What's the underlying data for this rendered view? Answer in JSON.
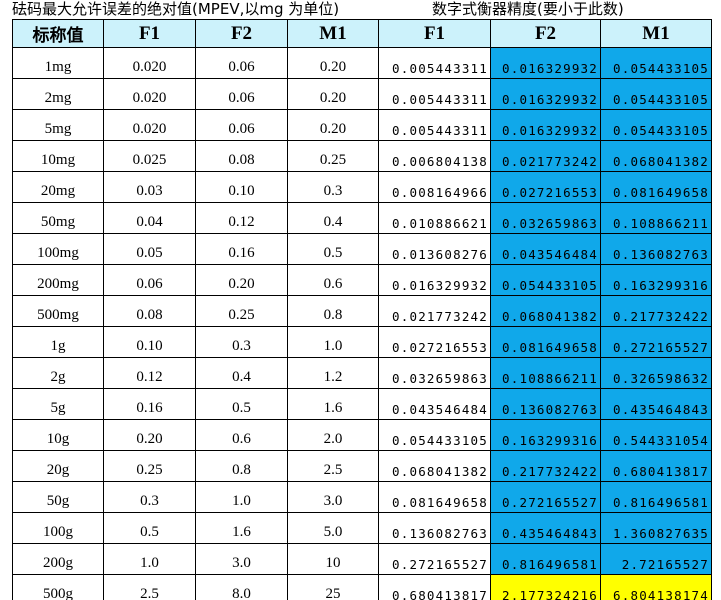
{
  "header": {
    "title_left": "砝码最大允许误差的绝对值(MPEV,以mg 为单位)",
    "title_right": "数字式衡器精度(要小于此数)"
  },
  "table": {
    "columns": [
      "标称值",
      "F1",
      "F2",
      "M1",
      "F1",
      "F2",
      "M1"
    ],
    "rows": [
      [
        "1mg",
        "0.020",
        "0.06",
        "0.20",
        "0.005443311",
        "0.016329932",
        "0.054433105"
      ],
      [
        "2mg",
        "0.020",
        "0.06",
        "0.20",
        "0.005443311",
        "0.016329932",
        "0.054433105"
      ],
      [
        "5mg",
        "0.020",
        "0.06",
        "0.20",
        "0.005443311",
        "0.016329932",
        "0.054433105"
      ],
      [
        "10mg",
        "0.025",
        "0.08",
        "0.25",
        "0.006804138",
        "0.021773242",
        "0.068041382"
      ],
      [
        "20mg",
        "0.03",
        "0.10",
        "0.3",
        "0.008164966",
        "0.027216553",
        "0.081649658"
      ],
      [
        "50mg",
        "0.04",
        "0.12",
        "0.4",
        "0.010886621",
        "0.032659863",
        "0.108866211"
      ],
      [
        "100mg",
        "0.05",
        "0.16",
        "0.5",
        "0.013608276",
        "0.043546484",
        "0.136082763"
      ],
      [
        "200mg",
        "0.06",
        "0.20",
        "0.6",
        "0.016329932",
        "0.054433105",
        "0.163299316"
      ],
      [
        "500mg",
        "0.08",
        "0.25",
        "0.8",
        "0.021773242",
        "0.068041382",
        "0.217732422"
      ],
      [
        "1g",
        "0.10",
        "0.3",
        "1.0",
        "0.027216553",
        "0.081649658",
        "0.272165527"
      ],
      [
        "2g",
        "0.12",
        "0.4",
        "1.2",
        "0.032659863",
        "0.108866211",
        "0.326598632"
      ],
      [
        "5g",
        "0.16",
        "0.5",
        "1.6",
        "0.043546484",
        "0.136082763",
        "0.435464843"
      ],
      [
        "10g",
        "0.20",
        "0.6",
        "2.0",
        "0.054433105",
        "0.163299316",
        "0.544331054"
      ],
      [
        "20g",
        "0.25",
        "0.8",
        "2.5",
        "0.068041382",
        "0.217732422",
        "0.680413817"
      ],
      [
        "50g",
        "0.3",
        "1.0",
        "3.0",
        "0.081649658",
        "0.272165527",
        "0.816496581"
      ],
      [
        "100g",
        "0.5",
        "1.6",
        "5.0",
        "0.136082763",
        "0.435464843",
        "1.360827635"
      ],
      [
        "200g",
        "1.0",
        "3.0",
        "10",
        "0.272165527",
        "0.816496581",
        "2.72165527"
      ],
      [
        "500g",
        "2.5",
        "8.0",
        "25",
        "0.680413817",
        "2.177324216",
        "6.804138174"
      ]
    ]
  }
}
